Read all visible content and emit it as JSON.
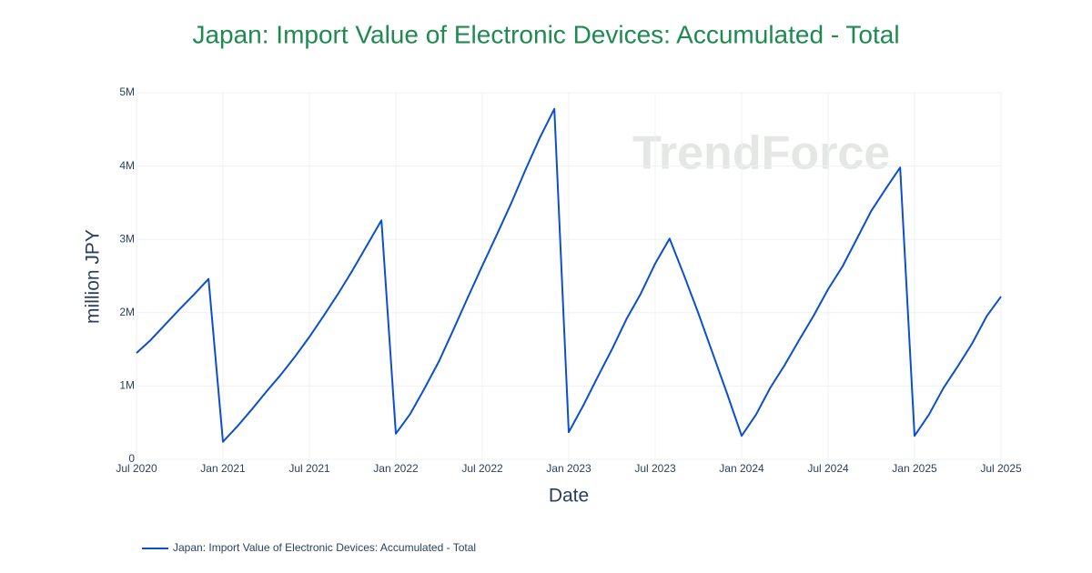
{
  "chart_data": {
    "type": "line",
    "title": "Japan: Import Value of Electronic Devices: Accumulated - Total",
    "watermark": "TrendForce",
    "x_label": "Date",
    "y_label": "million JPY",
    "x": [
      "2020-07",
      "2020-08",
      "2020-09",
      "2020-10",
      "2020-11",
      "2020-12",
      "2021-01",
      "2021-02",
      "2021-03",
      "2021-04",
      "2021-05",
      "2021-06",
      "2021-07",
      "2021-08",
      "2021-09",
      "2021-10",
      "2021-11",
      "2021-12",
      "2022-01",
      "2022-02",
      "2022-03",
      "2022-04",
      "2022-05",
      "2022-06",
      "2022-07",
      "2022-08",
      "2022-09",
      "2022-10",
      "2022-11",
      "2022-12",
      "2023-01",
      "2023-02",
      "2023-03",
      "2023-04",
      "2023-05",
      "2023-06",
      "2023-07",
      "2023-08",
      "2023-09",
      "2023-10",
      "2023-11",
      "2023-12",
      "2024-01",
      "2024-02",
      "2024-03",
      "2024-04",
      "2024-05",
      "2024-06",
      "2024-07",
      "2024-08",
      "2024-09",
      "2024-10",
      "2024-11",
      "2024-12",
      "2025-01",
      "2025-02",
      "2025-03",
      "2025-04",
      "2025-05",
      "2025-06",
      "2025-07"
    ],
    "series": [
      {
        "name": "Japan: Import Value of Electronic Devices: Accumulated - Total",
        "color": "#0b4fcf",
        "values": [
          1450000,
          1630000,
          1840000,
          2050000,
          2250000,
          2460000,
          240000,
          450000,
          680000,
          920000,
          1150000,
          1400000,
          1670000,
          1960000,
          2260000,
          2580000,
          2920000,
          3260000,
          350000,
          620000,
          970000,
          1340000,
          1770000,
          2210000,
          2640000,
          3060000,
          3490000,
          3950000,
          4390000,
          4780000,
          370000,
          730000,
          1120000,
          1500000,
          1910000,
          2260000,
          2670000,
          3010000,
          2510000,
          1990000,
          1440000,
          890000,
          320000,
          610000,
          980000,
          1290000,
          1630000,
          1960000,
          2320000,
          2630000,
          3010000,
          3390000,
          3690000,
          3980000,
          320000,
          610000,
          970000,
          1270000,
          1580000,
          1950000,
          2220000
        ]
      }
    ],
    "xlim": [
      "2020-07",
      "2025-07"
    ],
    "xticks": [
      {
        "value": "2020-07",
        "label": "Jul 2020"
      },
      {
        "value": "2021-01",
        "label": "Jan 2021"
      },
      {
        "value": "2021-07",
        "label": "Jul 2021"
      },
      {
        "value": "2022-01",
        "label": "Jan 2022"
      },
      {
        "value": "2022-07",
        "label": "Jul 2022"
      },
      {
        "value": "2023-01",
        "label": "Jan 2023"
      },
      {
        "value": "2023-07",
        "label": "Jul 2023"
      },
      {
        "value": "2024-01",
        "label": "Jan 2024"
      },
      {
        "value": "2024-07",
        "label": "Jul 2024"
      },
      {
        "value": "2025-01",
        "label": "Jan 2025"
      },
      {
        "value": "2025-07",
        "label": "Jul 2025"
      }
    ],
    "ylim": [
      0,
      5000000
    ],
    "yticks": [
      0,
      {
        "value": 1000000,
        "label": "1M"
      },
      {
        "value": 2000000,
        "label": "2M"
      },
      {
        "value": 3000000,
        "label": "3M"
      },
      {
        "value": 4000000,
        "label": "4M"
      },
      {
        "value": 5000000,
        "label": "5M"
      }
    ],
    "grid": true
  }
}
